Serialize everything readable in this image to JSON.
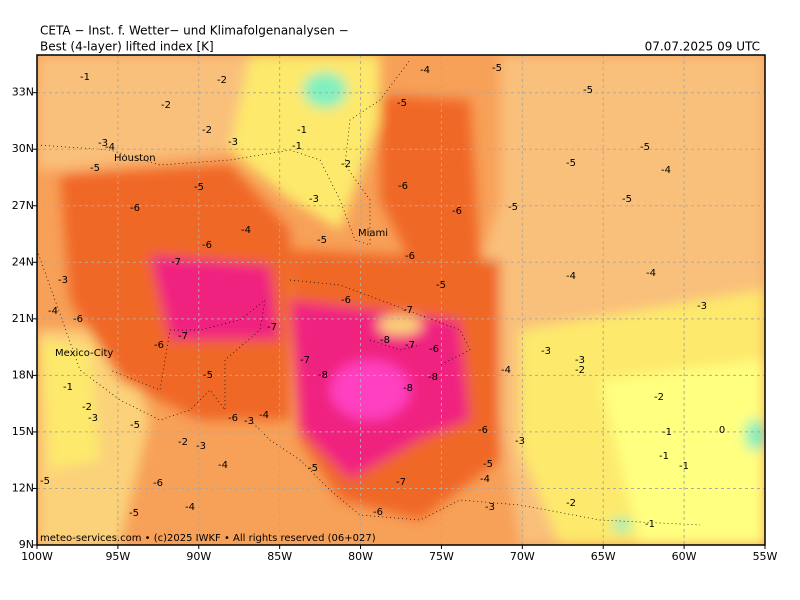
{
  "header": {
    "institute": "CETA − Inst. f. Wetter− und Klimafolgenanalysen −",
    "title": "Best (4-layer) lifted index [K]",
    "datetime": "07.07.2025 09 UTC"
  },
  "map": {
    "xlim": [
      -100,
      -55
    ],
    "ylim": [
      9,
      35
    ],
    "xticks": [
      {
        "value": -100,
        "label": "100W"
      },
      {
        "value": -95,
        "label": "95W"
      },
      {
        "value": -90,
        "label": "90W"
      },
      {
        "value": -85,
        "label": "85W"
      },
      {
        "value": -80,
        "label": "80W"
      },
      {
        "value": -75,
        "label": "75W"
      },
      {
        "value": -70,
        "label": "70W"
      },
      {
        "value": -65,
        "label": "65W"
      },
      {
        "value": -60,
        "label": "60W"
      },
      {
        "value": -55,
        "label": "55W"
      }
    ],
    "yticks": [
      {
        "value": 9,
        "label": "9N"
      },
      {
        "value": 12,
        "label": "12N"
      },
      {
        "value": 15,
        "label": "15N"
      },
      {
        "value": 18,
        "label": "18N"
      },
      {
        "value": 21,
        "label": "21N"
      },
      {
        "value": 24,
        "label": "24N"
      },
      {
        "value": 27,
        "label": "27N"
      },
      {
        "value": 30,
        "label": "30N"
      },
      {
        "value": 33,
        "label": "33N"
      }
    ],
    "grid": true,
    "cities": [
      "Houston",
      "Miami",
      "Mexico-City"
    ],
    "contour_labels": [
      -1,
      -2,
      -2,
      -2,
      -3,
      -3,
      -4,
      -5,
      -5,
      -6,
      -6,
      -7,
      -6,
      -7,
      -6,
      -7,
      -7,
      -8,
      -6,
      -7,
      -8,
      -7,
      -6,
      -8,
      -8,
      -5,
      -6,
      -6,
      -5,
      -4,
      -5,
      -5,
      -5,
      -5,
      -4,
      -5,
      -5,
      -4,
      -4,
      -3,
      -3,
      -3,
      -2,
      -2,
      -1,
      0,
      -1,
      -1,
      -4,
      -3,
      -6,
      -5,
      -4,
      -7,
      -6,
      -3,
      -2,
      -1,
      -5,
      -4,
      -3,
      -6,
      -5,
      -2,
      -3,
      -4,
      -4,
      -5,
      -6,
      -5,
      -3,
      -2,
      -1,
      -3,
      -4,
      -3,
      -5,
      -4,
      -2,
      -1,
      -1,
      -5,
      -6
    ]
  },
  "footer": "meteo-services.com • (c)2025 IWKF • All rights reserved (06+027)"
}
